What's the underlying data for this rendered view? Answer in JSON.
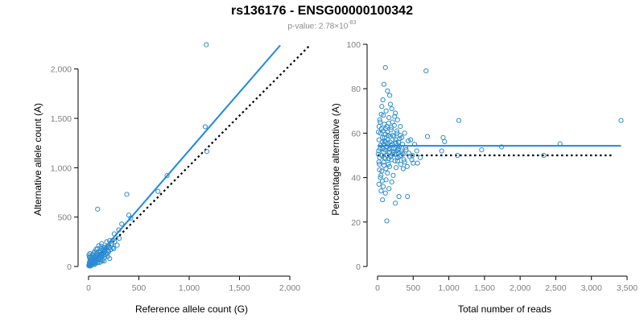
{
  "title": "rs136176 - ENSG00000100342",
  "subtitle": {
    "prefix": "p-value: 2.78×10",
    "exponent": "-83"
  },
  "colors": {
    "points": "#2f8dcd",
    "fit_line": "#1f87e8",
    "reference_line": "#000000",
    "tick_labels": "#7f7f7f"
  },
  "chart_data": [
    {
      "type": "scatter",
      "xlabel": "Reference allele count (G)",
      "ylabel": "Alternative allele count (A)",
      "xlim": [
        0,
        2000
      ],
      "ylim": [
        0,
        2250
      ],
      "xticks": [
        0,
        500,
        1000,
        1500,
        2000
      ],
      "xtick_labels": [
        "0",
        "500",
        "1,000",
        "1,500",
        "2,000"
      ],
      "yticks": [
        0,
        500,
        1000,
        1500,
        2000
      ],
      "ytick_labels": [
        "0",
        "500",
        "1,000",
        "1,500",
        "2,000"
      ],
      "grid": false,
      "points": [
        [
          1170,
          2245
        ],
        [
          1160,
          1415
        ],
        [
          1175,
          1165
        ],
        [
          780,
          920
        ],
        [
          690,
          760
        ],
        [
          380,
          730
        ],
        [
          90,
          580
        ],
        [
          400,
          520
        ],
        [
          420,
          490
        ],
        [
          330,
          430
        ],
        [
          300,
          370
        ],
        [
          255,
          330
        ],
        [
          270,
          290
        ],
        [
          305,
          285
        ],
        [
          240,
          265
        ],
        [
          230,
          225
        ],
        [
          210,
          260
        ],
        [
          180,
          200
        ],
        [
          150,
          190
        ],
        [
          120,
          160
        ],
        [
          100,
          210
        ],
        [
          130,
          230
        ],
        [
          90,
          180
        ],
        [
          60,
          150
        ],
        [
          200,
          150
        ],
        [
          220,
          170
        ],
        [
          170,
          120
        ],
        [
          160,
          95
        ],
        [
          140,
          60
        ],
        [
          110,
          40
        ],
        [
          80,
          70
        ],
        [
          60,
          50
        ],
        [
          40,
          30
        ],
        [
          20,
          15
        ],
        [
          10,
          5
        ],
        [
          30,
          90
        ],
        [
          50,
          110
        ],
        [
          70,
          80
        ],
        [
          150,
          140
        ],
        [
          190,
          100
        ],
        [
          210,
          80
        ],
        [
          175,
          180
        ],
        [
          140,
          130
        ],
        [
          95,
          120
        ],
        [
          60,
          90
        ],
        [
          45,
          60
        ],
        [
          25,
          40
        ],
        [
          15,
          70
        ],
        [
          35,
          20
        ],
        [
          55,
          35
        ],
        [
          75,
          55
        ],
        [
          105,
          75
        ],
        [
          125,
          100
        ],
        [
          165,
          150
        ],
        [
          240,
          190
        ],
        [
          185,
          130
        ],
        [
          130,
          180
        ],
        [
          115,
          140
        ],
        [
          85,
          100
        ],
        [
          65,
          40
        ],
        [
          40,
          75
        ],
        [
          30,
          55
        ],
        [
          20,
          25
        ],
        [
          12,
          10
        ],
        [
          8,
          30
        ],
        [
          5,
          15
        ],
        [
          18,
          5
        ],
        [
          28,
          12
        ],
        [
          45,
          25
        ],
        [
          70,
          30
        ],
        [
          95,
          50
        ],
        [
          115,
          85
        ],
        [
          135,
          110
        ],
        [
          155,
          115
        ],
        [
          160,
          170
        ],
        [
          195,
          160
        ],
        [
          225,
          210
        ],
        [
          260,
          250
        ],
        [
          285,
          215
        ],
        [
          250,
          180
        ],
        [
          205,
          190
        ],
        [
          180,
          250
        ],
        [
          145,
          170
        ],
        [
          125,
          205
        ],
        [
          100,
          150
        ],
        [
          80,
          130
        ],
        [
          70,
          110
        ],
        [
          55,
          95
        ],
        [
          35,
          65
        ],
        [
          22,
          50
        ],
        [
          14,
          35
        ],
        [
          6,
          22
        ],
        [
          3,
          8
        ],
        [
          10,
          45
        ],
        [
          25,
          85
        ],
        [
          50,
          135
        ],
        [
          75,
          175
        ],
        [
          110,
          120
        ],
        [
          135,
          75
        ],
        [
          155,
          55
        ],
        [
          20,
          100
        ],
        [
          40,
          120
        ],
        [
          60,
          20
        ],
        [
          88,
          38
        ],
        [
          110,
          95
        ],
        [
          125,
          50
        ],
        [
          100,
          65
        ],
        [
          65,
          65
        ],
        [
          42,
          42
        ],
        [
          33,
          30
        ],
        [
          18,
          60
        ],
        [
          8,
          95
        ],
        [
          4,
          115
        ],
        [
          12,
          130
        ]
      ],
      "fit_line": {
        "x1": 0,
        "y1": 0,
        "x2": 1905,
        "y2": 2240
      },
      "reference_line": {
        "x1": 0,
        "y1": 0,
        "x2": 2200,
        "y2": 2240
      }
    },
    {
      "type": "scatter",
      "xlabel": "Total number of reads",
      "ylabel": "Percentage alternative (A)",
      "xlim": [
        0,
        3500
      ],
      "ylim": [
        0,
        100
      ],
      "xticks": [
        0,
        500,
        1000,
        1500,
        2000,
        2500,
        3000,
        3500
      ],
      "xtick_labels": [
        "0",
        "500",
        "1,000",
        "1,500",
        "2,000",
        "2,500",
        "3,000",
        "3,500"
      ],
      "yticks": [
        0,
        20,
        40,
        60,
        80,
        100
      ],
      "ytick_labels": [
        "0",
        "20",
        "40",
        "60",
        "80",
        "100"
      ],
      "grid": false,
      "points": [
        [
          3415,
          65.7
        ],
        [
          2560,
          55.2
        ],
        [
          2330,
          50.0
        ],
        [
          1740,
          53.8
        ],
        [
          1460,
          52.5
        ],
        [
          1140,
          65.7
        ],
        [
          1120,
          50.0
        ],
        [
          940,
          56.2
        ],
        [
          920,
          58.0
        ],
        [
          680,
          88.0
        ],
        [
          700,
          58.5
        ],
        [
          900,
          52.0
        ],
        [
          110,
          89.5
        ],
        [
          90,
          82.0
        ],
        [
          140,
          79.0
        ],
        [
          75,
          75.0
        ],
        [
          180,
          73.0
        ],
        [
          60,
          72.0
        ],
        [
          120,
          70.0
        ],
        [
          250,
          69.0
        ],
        [
          80,
          68.0
        ],
        [
          160,
          67.0
        ],
        [
          30,
          66.0
        ],
        [
          210,
          65.0
        ],
        [
          95,
          64.0
        ],
        [
          130,
          63.0
        ],
        [
          55,
          62.0
        ],
        [
          190,
          61.5
        ],
        [
          270,
          61.0
        ],
        [
          40,
          60.0
        ],
        [
          110,
          59.5
        ],
        [
          150,
          59.0
        ],
        [
          230,
          58.5
        ],
        [
          70,
          58.0
        ],
        [
          310,
          57.5
        ],
        [
          20,
          57.0
        ],
        [
          100,
          56.5
        ],
        [
          175,
          56.0
        ],
        [
          260,
          55.5
        ],
        [
          350,
          55.0
        ],
        [
          45,
          54.5
        ],
        [
          125,
          54.0
        ],
        [
          200,
          53.5
        ],
        [
          290,
          53.0
        ],
        [
          400,
          52.5
        ],
        [
          15,
          52.0
        ],
        [
          85,
          51.5
        ],
        [
          160,
          51.0
        ],
        [
          240,
          50.5
        ],
        [
          330,
          50.0
        ],
        [
          450,
          49.5
        ],
        [
          30,
          49.0
        ],
        [
          110,
          48.5
        ],
        [
          190,
          48.0
        ],
        [
          280,
          47.5
        ],
        [
          380,
          47.0
        ],
        [
          500,
          46.5
        ],
        [
          25,
          46.0
        ],
        [
          90,
          45.5
        ],
        [
          170,
          45.0
        ],
        [
          260,
          44.5
        ],
        [
          360,
          44.0
        ],
        [
          60,
          43.0
        ],
        [
          140,
          42.0
        ],
        [
          220,
          41.0
        ],
        [
          40,
          40.0
        ],
        [
          120,
          39.0
        ],
        [
          200,
          38.0
        ],
        [
          20,
          37.0
        ],
        [
          80,
          36.0
        ],
        [
          160,
          35.0
        ],
        [
          50,
          34.0
        ],
        [
          110,
          33.0
        ],
        [
          300,
          31.5
        ],
        [
          420,
          31.5
        ],
        [
          70,
          30.0
        ],
        [
          250,
          28.5
        ],
        [
          130,
          20.5
        ],
        [
          550,
          52.0
        ],
        [
          600,
          49.0
        ],
        [
          480,
          48.0
        ],
        [
          560,
          46.5
        ],
        [
          520,
          55.0
        ],
        [
          430,
          56.5
        ],
        [
          380,
          60.0
        ],
        [
          320,
          63.0
        ],
        [
          280,
          66.0
        ],
        [
          240,
          67.5
        ],
        [
          200,
          71.0
        ],
        [
          170,
          77.0
        ],
        [
          145,
          57.0
        ],
        [
          65,
          56.0
        ],
        [
          35,
          53.0
        ],
        [
          10,
          50.5
        ],
        [
          18,
          47.0
        ],
        [
          28,
          43.5
        ],
        [
          48,
          41.0
        ],
        [
          66,
          38.5
        ],
        [
          88,
          47.0
        ],
        [
          105,
          52.5
        ],
        [
          118,
          44.0
        ],
        [
          135,
          50.0
        ],
        [
          152,
          46.0
        ],
        [
          168,
          53.0
        ],
        [
          185,
          49.5
        ],
        [
          205,
          55.0
        ],
        [
          225,
          51.5
        ],
        [
          245,
          47.5
        ],
        [
          265,
          52.0
        ],
        [
          285,
          49.0
        ],
        [
          305,
          54.0
        ],
        [
          325,
          46.0
        ],
        [
          345,
          51.0
        ],
        [
          370,
          48.0
        ],
        [
          395,
          53.5
        ],
        [
          415,
          45.0
        ],
        [
          440,
          51.0
        ],
        [
          465,
          57.0
        ],
        [
          490,
          50.0
        ],
        [
          12,
          60.5
        ],
        [
          22,
          63.0
        ],
        [
          38,
          65.0
        ],
        [
          52,
          68.5
        ],
        [
          78,
          61.0
        ],
        [
          98,
          58.0
        ],
        [
          115,
          62.0
        ],
        [
          138,
          60.5
        ],
        [
          155,
          64.5
        ],
        [
          178,
          58.5
        ],
        [
          195,
          62.5
        ],
        [
          215,
          59.0
        ],
        [
          235,
          63.5
        ],
        [
          255,
          57.0
        ],
        [
          275,
          60.0
        ],
        [
          295,
          56.0
        ],
        [
          315,
          59.0
        ],
        [
          340,
          58.0
        ],
        [
          58,
          50.0
        ],
        [
          72,
          53.0
        ],
        [
          84,
          55.0
        ],
        [
          96,
          49.0
        ],
        [
          112,
          56.0
        ],
        [
          128,
          53.5
        ],
        [
          142,
          55.5
        ],
        [
          158,
          48.5
        ],
        [
          172,
          51.5
        ],
        [
          188,
          54.5
        ],
        [
          208,
          50.5
        ],
        [
          228,
          53.0
        ],
        [
          248,
          56.0
        ],
        [
          268,
          50.5
        ],
        [
          290,
          52.5
        ],
        [
          312,
          49.5
        ],
        [
          335,
          52.0
        ],
        [
          360,
          50.5
        ]
      ],
      "fit_line": {
        "x1": 0,
        "y1": 54.3,
        "x2": 3415,
        "y2": 54.3
      },
      "reference_line": {
        "x1": 0,
        "y1": 50,
        "x2": 3300,
        "y2": 50
      }
    }
  ]
}
